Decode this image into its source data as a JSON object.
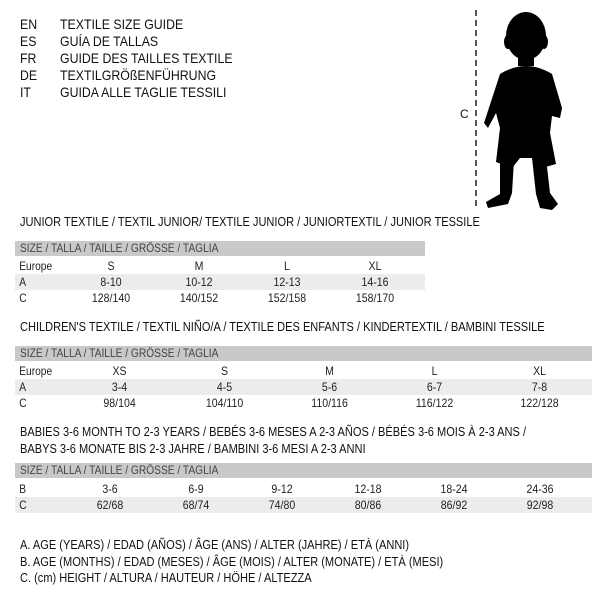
{
  "languages": [
    {
      "code": "EN",
      "title": "TEXTILE SIZE GUIDE"
    },
    {
      "code": "ES",
      "title": "GUÍA DE TALLAS"
    },
    {
      "code": "FR",
      "title": "GUIDE DES TAILLES TEXTILE"
    },
    {
      "code": "DE",
      "title": "TEXTILGRÖßENFÜHRUNG"
    },
    {
      "code": "IT",
      "title": "GUIDA ALLE TAGLIE TESSILI"
    }
  ],
  "figure": {
    "measure_label": "C"
  },
  "size_header": "SIZE / TALLA / TAILLE / GRÖSSE / TAGLIA",
  "junior": {
    "title": "JUNIOR TEXTILE / TEXTIL JUNIOR/ TEXTILE JUNIOR / JUNIORTEXTIL / JUNIOR TESSILE",
    "rows": [
      {
        "label": "Europe",
        "cells": [
          "S",
          "M",
          "L",
          "XL"
        ]
      },
      {
        "label": "A",
        "cells": [
          "8-10",
          "10-12",
          "12-13",
          "14-16"
        ]
      },
      {
        "label": "C",
        "cells": [
          "128/140",
          "140/152",
          "152/158",
          "158/170"
        ]
      }
    ]
  },
  "children": {
    "title": "CHILDREN'S TEXTILE / TEXTIL NIÑO/A / TEXTILE DES ENFANTS / KINDERTEXTIL / BAMBINI TESSILE",
    "rows": [
      {
        "label": "Europe",
        "cells": [
          "XS",
          "S",
          "M",
          "L",
          "XL"
        ]
      },
      {
        "label": "A",
        "cells": [
          "3-4",
          "4-5",
          "5-6",
          "6-7",
          "7-8"
        ]
      },
      {
        "label": "C",
        "cells": [
          "98/104",
          "104/110",
          "110/116",
          "116/122",
          "122/128"
        ]
      }
    ]
  },
  "babies": {
    "title_line1": "BABIES 3-6 MONTH TO 2-3 YEARS / BEBÉS 3-6 MESES A 2-3 AÑOS / BÉBÉS 3-6 MOIS À 2-3 ANS /",
    "title_line2": "BABYS 3-6 MONATE BIS 2-3 JAHRE / BAMBINI 3-6 MESI A 2-3 ANNI",
    "rows": [
      {
        "label": "B",
        "cells": [
          "3-6",
          "6-9",
          "9-12",
          "12-18",
          "18-24",
          "24-36"
        ]
      },
      {
        "label": "C",
        "cells": [
          "62/68",
          "68/74",
          "74/80",
          "80/86",
          "86/92",
          "92/98"
        ]
      }
    ]
  },
  "legend": [
    "A. AGE (YEARS) / EDAD (AÑOS) / ÂGE (ANS) / ALTER (JAHRE) / ETÀ (ANNI)",
    "B. AGE (MONTHS) / EDAD (MESES) / ÂGE (MOIS) / ALTER (MONATE) / ETÀ (MESI)",
    "C. (cm) HEIGHT / ALTURA / HAUTEUR / HÖHE / ALTEZZA"
  ]
}
